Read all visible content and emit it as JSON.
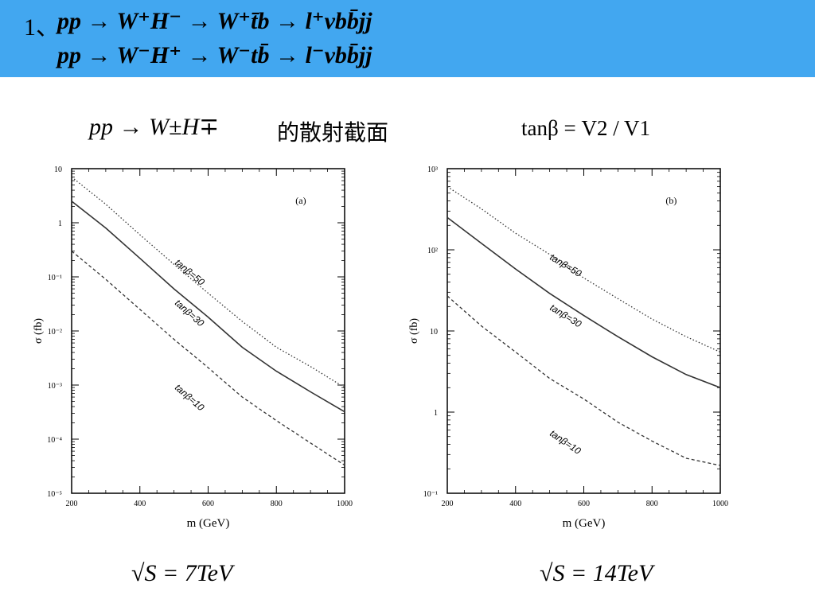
{
  "header": {
    "number": "1、",
    "line1": "pp → W⁺H⁻ → W⁺t̄b → l⁺νbb̄jj",
    "line2": "pp → W⁻H⁺ → W⁻tb̄ → l⁻νbb̄jj"
  },
  "subtitle": {
    "process": "pp → W±H∓",
    "zh": "的散射截面",
    "tan_def": "tanβ = V2 / V1"
  },
  "energies": {
    "left": "√S = 7TeV",
    "right": "√S = 14TeV"
  },
  "colors": {
    "banner": "#42a7f0",
    "axis": "#000000",
    "curve": "#333333"
  },
  "chart_data": [
    {
      "type": "line",
      "panel_label": "(a)",
      "xlabel": "m (GeV)",
      "ylabel": "σ (fb)",
      "xlim": [
        200,
        1000
      ],
      "ylim": [
        1e-05,
        10
      ],
      "yscale": "log",
      "xticks": [
        200,
        400,
        600,
        800,
        1000
      ],
      "yticks": [
        10,
        1,
        0.1,
        0.01,
        0.001,
        0.0001,
        1e-05
      ],
      "ytick_labels": [
        "10",
        "1",
        "10⁻¹",
        "10⁻²",
        "10⁻³",
        "10⁻⁴",
        "10⁻⁵"
      ],
      "x": [
        200,
        300,
        400,
        500,
        600,
        700,
        800,
        900,
        1000
      ],
      "series": [
        {
          "name": "tanβ=50",
          "style": "dotted",
          "values": [
            7,
            2.2,
            0.6,
            0.17,
            0.05,
            0.015,
            0.005,
            0.0022,
            0.0009
          ]
        },
        {
          "name": "tanβ=30",
          "style": "solid",
          "values": [
            2.5,
            0.8,
            0.22,
            0.06,
            0.018,
            0.005,
            0.0018,
            0.00075,
            0.00032
          ]
        },
        {
          "name": "tanβ=10",
          "style": "dashed",
          "values": [
            0.3,
            0.09,
            0.025,
            0.007,
            0.0021,
            0.0006,
            0.00022,
            8.5e-05,
            3.3e-05
          ]
        }
      ]
    },
    {
      "type": "line",
      "panel_label": "(b)",
      "xlabel": "m (GeV)",
      "ylabel": "σ (fb)",
      "xlim": [
        200,
        1000
      ],
      "ylim": [
        0.1,
        1000
      ],
      "yscale": "log",
      "xticks": [
        200,
        400,
        600,
        800,
        1000
      ],
      "yticks": [
        1000,
        100,
        10,
        1,
        0.1
      ],
      "ytick_labels": [
        "10³",
        "10²",
        "10",
        "1",
        "10⁻¹"
      ],
      "x": [
        200,
        300,
        400,
        500,
        600,
        700,
        800,
        900,
        1000
      ],
      "series": [
        {
          "name": "tanβ=50",
          "style": "dotted",
          "values": [
            600,
            320,
            160,
            88,
            45,
            25,
            14,
            8.5,
            5.5
          ]
        },
        {
          "name": "tanβ=30",
          "style": "solid",
          "values": [
            250,
            120,
            58,
            29,
            15.5,
            8.5,
            4.8,
            2.9,
            2
          ]
        },
        {
          "name": "tanβ=10",
          "style": "dashed",
          "values": [
            27,
            11.5,
            5.5,
            2.6,
            1.45,
            0.75,
            0.44,
            0.27,
            0.22
          ]
        }
      ]
    }
  ]
}
